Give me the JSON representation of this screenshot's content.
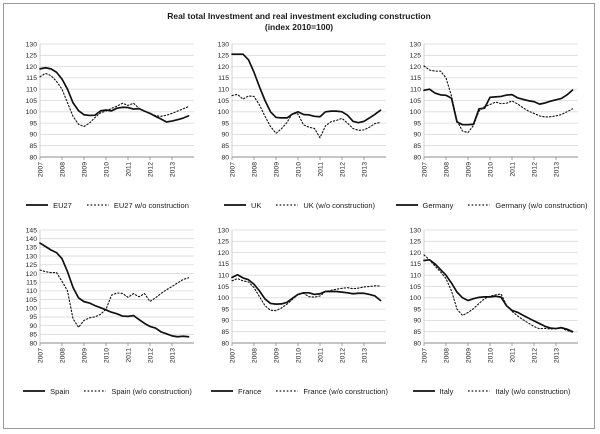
{
  "title": "Real total Investment and real investment excluding construction",
  "subtitle": "(index 2010=100)",
  "colors": {
    "line": "#111111",
    "grid": "#d9d9d9",
    "axis": "#8c8c8c",
    "yaxis": "#c3c3c3",
    "text": "#262626"
  },
  "chart_data": [
    {
      "type": "line",
      "id": "eu27",
      "ylim": [
        80,
        130
      ],
      "ystep": 5,
      "x_start": 2007,
      "x_step": 0.25,
      "x_end": 2014,
      "x_ticks": [
        2007,
        2008,
        2009,
        2010,
        2011,
        2012,
        2013
      ],
      "series": [
        {
          "name": "EU27",
          "style": "solid",
          "values": [
            119,
            119.5,
            119,
            117.5,
            114.5,
            110,
            104,
            100.5,
            98.7,
            98.4,
            98.5,
            100.4,
            100.8,
            100.4,
            101.6,
            102,
            101.9,
            101.2,
            101.4,
            100.3,
            99.3,
            98,
            96.8,
            95.5,
            95.9,
            96.5,
            97.2,
            98.2
          ]
        },
        {
          "name": "EU27 w/o construction",
          "style": "dotted",
          "values": [
            115.5,
            117,
            116,
            113.5,
            110,
            104,
            98,
            94.5,
            93.5,
            95,
            97.5,
            99.5,
            100.3,
            101.5,
            102.5,
            103.8,
            102.8,
            103.8,
            101.5,
            100.3,
            99.3,
            98.3,
            98,
            98.5,
            99.3,
            100.3,
            101.3,
            102.3
          ]
        }
      ]
    },
    {
      "type": "line",
      "id": "uk",
      "ylim": [
        80,
        130
      ],
      "ystep": 5,
      "x_start": 2007,
      "x_step": 0.25,
      "x_end": 2014,
      "x_ticks": [
        2007,
        2008,
        2009,
        2010,
        2011,
        2012,
        2013
      ],
      "series": [
        {
          "name": "UK",
          "style": "solid",
          "values": [
            125.5,
            125.5,
            125.5,
            123,
            117.5,
            111,
            105,
            100,
            97.5,
            97.3,
            97.3,
            99,
            100,
            98.8,
            98.6,
            98,
            97.8,
            100,
            100.3,
            100.3,
            100,
            98.5,
            95.8,
            95.2,
            95.8,
            97.3,
            98.9,
            100.7
          ]
        },
        {
          "name": "UK (w/o construction)",
          "style": "dotted",
          "values": [
            107.2,
            107.7,
            105.6,
            107,
            106.8,
            103,
            98,
            93.5,
            90.5,
            92.5,
            95.3,
            99.3,
            99,
            94.2,
            93.2,
            92.6,
            88.5,
            93.8,
            95.6,
            96.2,
            97.1,
            95,
            92.6,
            91.8,
            92,
            93.2,
            94.8,
            95.3
          ]
        }
      ]
    },
    {
      "type": "line",
      "id": "germany",
      "ylim": [
        80,
        130
      ],
      "ystep": 5,
      "x_start": 2007,
      "x_step": 0.25,
      "x_end": 2014,
      "x_ticks": [
        2007,
        2008,
        2009,
        2010,
        2011,
        2012,
        2013
      ],
      "series": [
        {
          "name": "Germany",
          "style": "solid",
          "values": [
            109.5,
            110,
            108.3,
            107.5,
            107.3,
            106,
            95.5,
            94.3,
            94.3,
            94.5,
            101.3,
            101.6,
            106.4,
            106.6,
            106.8,
            107.4,
            107.6,
            106.2,
            105.5,
            104.9,
            104.5,
            103.4,
            103.9,
            104.7,
            105.3,
            105.9,
            107.5,
            109.6
          ]
        },
        {
          "name": "Germany (w/o construction)",
          "style": "dotted",
          "values": [
            120.3,
            118.5,
            118,
            118,
            115,
            107,
            96,
            91.5,
            90.8,
            94,
            100.3,
            102.3,
            103.2,
            104.3,
            103.6,
            103.8,
            104.8,
            103.5,
            101.8,
            100.3,
            99.3,
            98.2,
            97.7,
            97.8,
            98.2,
            98.8,
            100,
            101.3
          ]
        }
      ]
    },
    {
      "type": "line",
      "id": "spain",
      "ylim": [
        80,
        145
      ],
      "ystep": 5,
      "x_start": 2007,
      "x_step": 0.25,
      "x_end": 2014,
      "x_ticks": [
        2007,
        2008,
        2009,
        2010,
        2011,
        2012,
        2013
      ],
      "series": [
        {
          "name": "Spain",
          "style": "solid",
          "values": [
            137.5,
            135.5,
            133.5,
            132,
            128.5,
            121,
            112,
            106,
            103.8,
            103,
            101.5,
            100.3,
            99,
            97.7,
            96.8,
            95.5,
            95.3,
            95.8,
            93.5,
            91.3,
            89.5,
            88.6,
            86.4,
            85.3,
            84.1,
            83.6,
            83.9,
            83.6
          ]
        },
        {
          "name": "Spain (w/o construction)",
          "style": "dotted",
          "values": [
            122,
            121,
            120.5,
            120.5,
            115.5,
            110,
            94,
            89,
            93,
            94.5,
            95,
            96.5,
            99.4,
            107.5,
            108.8,
            108.5,
            106.3,
            108.4,
            106.6,
            108.4,
            103.9,
            106,
            108.5,
            110.6,
            112.5,
            114.5,
            116.5,
            117.5
          ]
        }
      ]
    },
    {
      "type": "line",
      "id": "france",
      "ylim": [
        80,
        130
      ],
      "ystep": 5,
      "x_start": 2007,
      "x_step": 0.25,
      "x_end": 2014,
      "x_ticks": [
        2007,
        2008,
        2009,
        2010,
        2011,
        2012,
        2013
      ],
      "series": [
        {
          "name": "France",
          "style": "solid",
          "values": [
            109,
            110.2,
            108.8,
            108,
            106,
            103,
            99.5,
            97.5,
            97.2,
            97.3,
            98,
            99.8,
            101.5,
            102.2,
            102.2,
            101.5,
            101.8,
            102.8,
            102.8,
            102.8,
            102.5,
            102.2,
            101.8,
            102,
            102,
            101.5,
            100.8,
            98.8
          ]
        },
        {
          "name": "France (w/o construction)",
          "style": "dotted",
          "values": [
            107.5,
            108.5,
            107.5,
            107,
            104.5,
            100.5,
            96.5,
            94.5,
            94.3,
            95.5,
            97.2,
            99.3,
            101.5,
            102,
            100.5,
            100.3,
            100.8,
            102.8,
            103.3,
            103.8,
            104.2,
            104.5,
            104,
            104.3,
            104.8,
            105,
            105.3,
            105.2
          ]
        }
      ]
    },
    {
      "type": "line",
      "id": "italy",
      "ylim": [
        80,
        130
      ],
      "ystep": 5,
      "x_start": 2007,
      "x_step": 0.25,
      "x_end": 2014,
      "x_ticks": [
        2007,
        2008,
        2009,
        2010,
        2011,
        2012,
        2013
      ],
      "series": [
        {
          "name": "Italy",
          "style": "solid",
          "values": [
            116.5,
            116.8,
            115,
            112.5,
            110,
            106.5,
            102.5,
            100,
            98.8,
            99.6,
            100.2,
            100.4,
            100.4,
            100.7,
            100.3,
            96.5,
            94.4,
            93.6,
            92.3,
            91,
            89.8,
            88.6,
            87.4,
            86.6,
            86.4,
            86.8,
            86.1,
            85
          ]
        },
        {
          "name": "Italy (w/o construction)",
          "style": "dotted",
          "values": [
            119,
            116.8,
            114,
            111.5,
            108.5,
            103,
            95,
            92.2,
            93.5,
            95.2,
            97.5,
            99.6,
            100.7,
            101.3,
            101.7,
            96.8,
            94,
            92,
            90.3,
            88.8,
            87.3,
            86.3,
            86.5,
            86.2,
            86.4,
            86.6,
            85.5,
            84.8
          ]
        }
      ]
    }
  ]
}
